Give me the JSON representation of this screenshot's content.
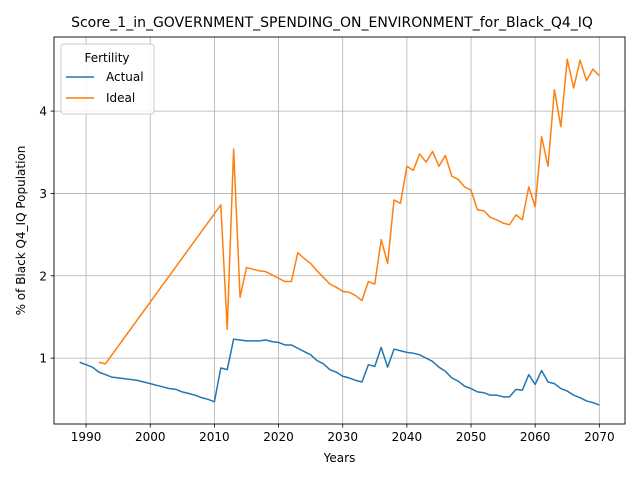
{
  "chart_data": {
    "type": "line",
    "title": "Score_1_in_GOVERNMENT_SPENDING_ON_ENVIRONMENT_for_Black_Q4_IQ",
    "xlabel": "Years",
    "ylabel": "% of Black Q4_IQ Population",
    "xlim": [
      1985,
      2074
    ],
    "ylim": [
      0.2,
      4.9
    ],
    "x_ticks": [
      1990,
      2000,
      2010,
      2020,
      2030,
      2040,
      2050,
      2060,
      2070
    ],
    "y_ticks": [
      1,
      2,
      3,
      4
    ],
    "grid": true,
    "legend": {
      "title": "Fertility",
      "position": "top-left"
    },
    "series": [
      {
        "name": "Actual",
        "color": "#1f77b4",
        "points": [
          [
            1989,
            0.95
          ],
          [
            1990,
            0.92
          ],
          [
            1991,
            0.89
          ],
          [
            1992,
            0.83
          ],
          [
            1993,
            0.8
          ],
          [
            1994,
            0.77
          ],
          [
            1995,
            0.76
          ],
          [
            1996,
            0.75
          ],
          [
            1997,
            0.74
          ],
          [
            1998,
            0.73
          ],
          [
            1999,
            0.71
          ],
          [
            2000,
            0.69
          ],
          [
            2001,
            0.67
          ],
          [
            2002,
            0.65
          ],
          [
            2003,
            0.63
          ],
          [
            2004,
            0.62
          ],
          [
            2005,
            0.59
          ],
          [
            2006,
            0.57
          ],
          [
            2007,
            0.55
          ],
          [
            2008,
            0.52
          ],
          [
            2009,
            0.5
          ],
          [
            2010,
            0.47
          ],
          [
            2011,
            0.88
          ],
          [
            2012,
            0.86
          ],
          [
            2013,
            1.23
          ],
          [
            2014,
            1.22
          ],
          [
            2015,
            1.21
          ],
          [
            2016,
            1.21
          ],
          [
            2017,
            1.21
          ],
          [
            2018,
            1.22
          ],
          [
            2019,
            1.2
          ],
          [
            2020,
            1.19
          ],
          [
            2021,
            1.16
          ],
          [
            2022,
            1.16
          ],
          [
            2023,
            1.12
          ],
          [
            2024,
            1.08
          ],
          [
            2025,
            1.04
          ],
          [
            2026,
            0.97
          ],
          [
            2027,
            0.93
          ],
          [
            2028,
            0.86
          ],
          [
            2029,
            0.83
          ],
          [
            2030,
            0.78
          ],
          [
            2031,
            0.76
          ],
          [
            2032,
            0.73
          ],
          [
            2033,
            0.71
          ],
          [
            2034,
            0.92
          ],
          [
            2035,
            0.9
          ],
          [
            2036,
            1.13
          ],
          [
            2037,
            0.89
          ],
          [
            2038,
            1.11
          ],
          [
            2039,
            1.09
          ],
          [
            2040,
            1.07
          ],
          [
            2041,
            1.06
          ],
          [
            2042,
            1.04
          ],
          [
            2043,
            1.0
          ],
          [
            2044,
            0.96
          ],
          [
            2045,
            0.89
          ],
          [
            2046,
            0.84
          ],
          [
            2047,
            0.76
          ],
          [
            2048,
            0.72
          ],
          [
            2049,
            0.66
          ],
          [
            2050,
            0.63
          ],
          [
            2051,
            0.59
          ],
          [
            2052,
            0.58
          ],
          [
            2053,
            0.55
          ],
          [
            2054,
            0.55
          ],
          [
            2055,
            0.53
          ],
          [
            2056,
            0.53
          ],
          [
            2057,
            0.62
          ],
          [
            2058,
            0.61
          ],
          [
            2059,
            0.8
          ],
          [
            2060,
            0.68
          ],
          [
            2061,
            0.85
          ],
          [
            2062,
            0.71
          ],
          [
            2063,
            0.69
          ],
          [
            2064,
            0.63
          ],
          [
            2065,
            0.6
          ],
          [
            2066,
            0.55
          ],
          [
            2067,
            0.52
          ],
          [
            2068,
            0.48
          ],
          [
            2069,
            0.46
          ],
          [
            2070,
            0.43
          ]
        ]
      },
      {
        "name": "Ideal",
        "color": "#ff7f0e",
        "points": [
          [
            1992,
            0.95
          ],
          [
            1993,
            0.93
          ],
          [
            2011,
            2.86
          ],
          [
            2012,
            1.35
          ],
          [
            2013,
            3.54
          ],
          [
            2014,
            1.74
          ],
          [
            2015,
            2.1
          ],
          [
            2016,
            2.08
          ],
          [
            2017,
            2.06
          ],
          [
            2018,
            2.05
          ],
          [
            2019,
            2.01
          ],
          [
            2020,
            1.97
          ],
          [
            2021,
            1.93
          ],
          [
            2022,
            1.93
          ],
          [
            2023,
            2.28
          ],
          [
            2024,
            2.21
          ],
          [
            2025,
            2.15
          ],
          [
            2026,
            2.06
          ],
          [
            2027,
            1.98
          ],
          [
            2028,
            1.9
          ],
          [
            2029,
            1.86
          ],
          [
            2030,
            1.81
          ],
          [
            2031,
            1.8
          ],
          [
            2032,
            1.76
          ],
          [
            2033,
            1.7
          ],
          [
            2034,
            1.93
          ],
          [
            2035,
            1.9
          ],
          [
            2036,
            2.44
          ],
          [
            2037,
            2.15
          ],
          [
            2038,
            2.92
          ],
          [
            2039,
            2.88
          ],
          [
            2040,
            3.33
          ],
          [
            2041,
            3.28
          ],
          [
            2042,
            3.48
          ],
          [
            2043,
            3.38
          ],
          [
            2044,
            3.51
          ],
          [
            2045,
            3.33
          ],
          [
            2046,
            3.46
          ],
          [
            2047,
            3.21
          ],
          [
            2048,
            3.17
          ],
          [
            2049,
            3.08
          ],
          [
            2050,
            3.04
          ],
          [
            2051,
            2.8
          ],
          [
            2052,
            2.79
          ],
          [
            2053,
            2.71
          ],
          [
            2054,
            2.68
          ],
          [
            2055,
            2.64
          ],
          [
            2056,
            2.62
          ],
          [
            2057,
            2.74
          ],
          [
            2058,
            2.68
          ],
          [
            2059,
            3.08
          ],
          [
            2060,
            2.84
          ],
          [
            2061,
            3.69
          ],
          [
            2062,
            3.33
          ],
          [
            2063,
            4.26
          ],
          [
            2064,
            3.81
          ],
          [
            2065,
            4.63
          ],
          [
            2066,
            4.28
          ],
          [
            2067,
            4.62
          ],
          [
            2068,
            4.37
          ],
          [
            2069,
            4.51
          ],
          [
            2070,
            4.43
          ]
        ]
      }
    ]
  }
}
